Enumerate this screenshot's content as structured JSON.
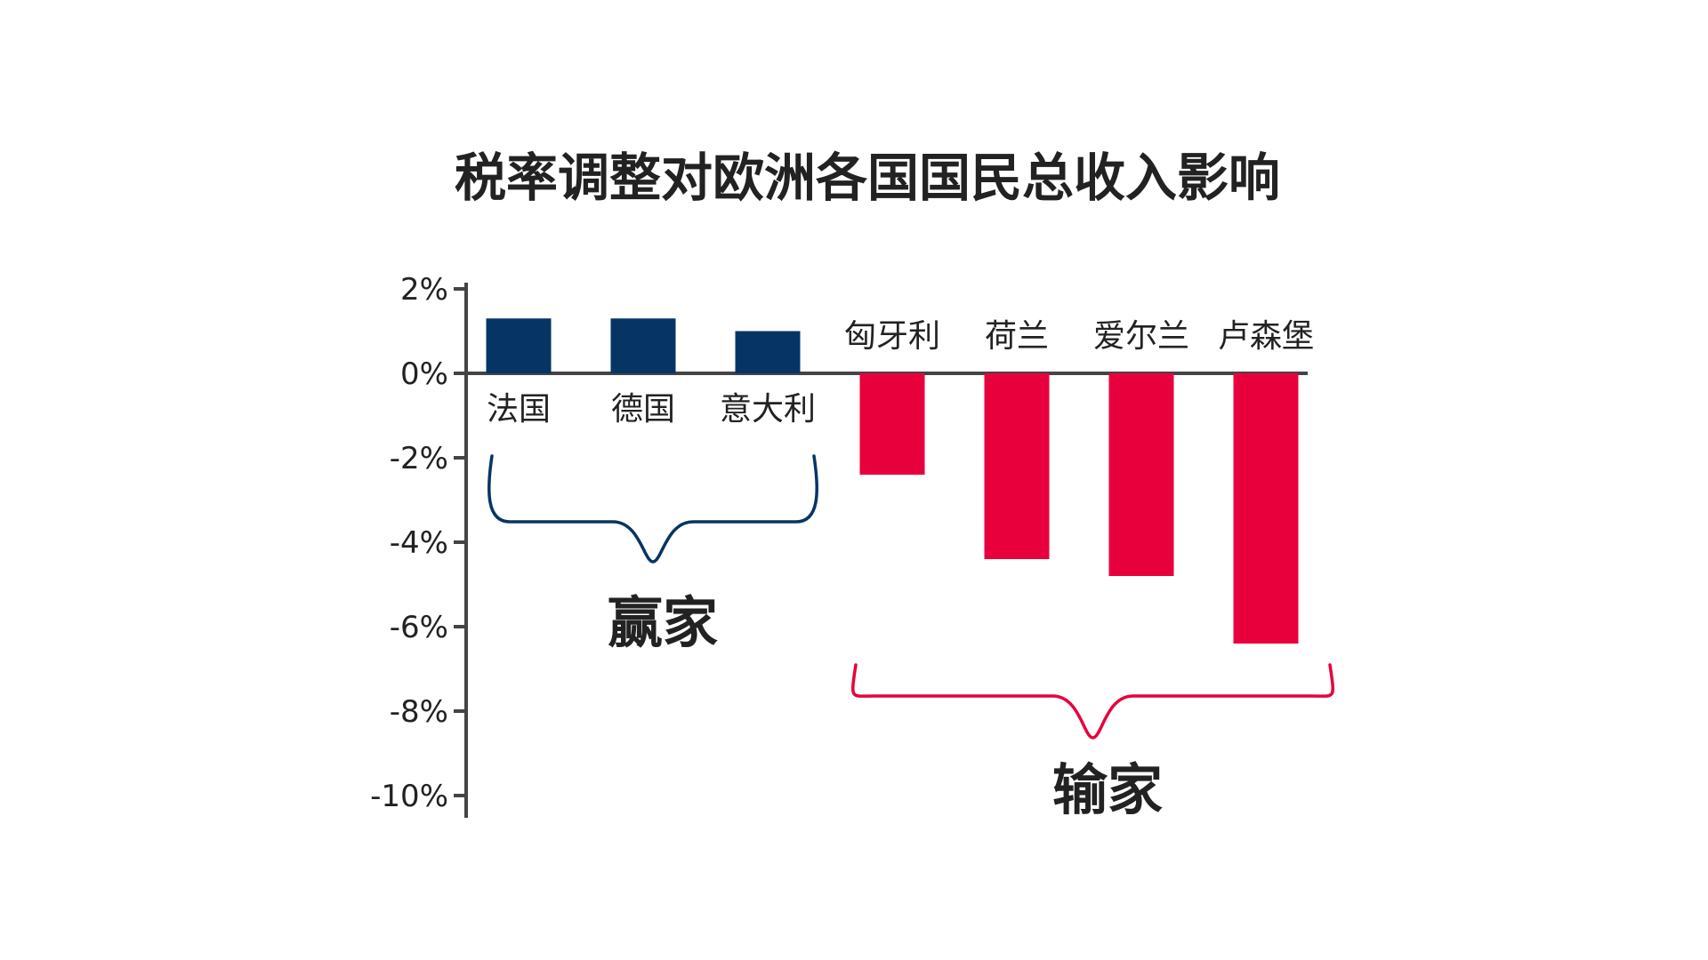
{
  "chart_data": {
    "type": "bar",
    "title": "税率调整对欧洲各国国民总收入影响",
    "xlabel": "",
    "ylabel": "",
    "categories": [
      "法国",
      "德国",
      "意大利",
      "匈牙利",
      "荷兰",
      "爱尔兰",
      "卢森堡"
    ],
    "values": [
      1.3,
      1.3,
      1.0,
      -2.4,
      -4.4,
      -4.8,
      -6.4
    ],
    "ylim": [
      -10,
      2
    ],
    "yticks": [
      2,
      0,
      -2,
      -4,
      -6,
      -8,
      -10
    ],
    "ytick_labels": [
      "2%",
      "0%",
      "-2%",
      "-4%",
      "-6%",
      "-8%",
      "-10%"
    ],
    "grid": false,
    "colors": {
      "positive": "#063565",
      "negative": "#E8003C",
      "axis": "#444444",
      "text": "#222222"
    },
    "groups": [
      {
        "label": "赢家",
        "members": [
          "法国",
          "德国",
          "意大利"
        ],
        "color": "#063565"
      },
      {
        "label": "输家",
        "members": [
          "匈牙利",
          "荷兰",
          "爱尔兰",
          "卢森堡"
        ],
        "color": "#E8003C"
      }
    ]
  }
}
